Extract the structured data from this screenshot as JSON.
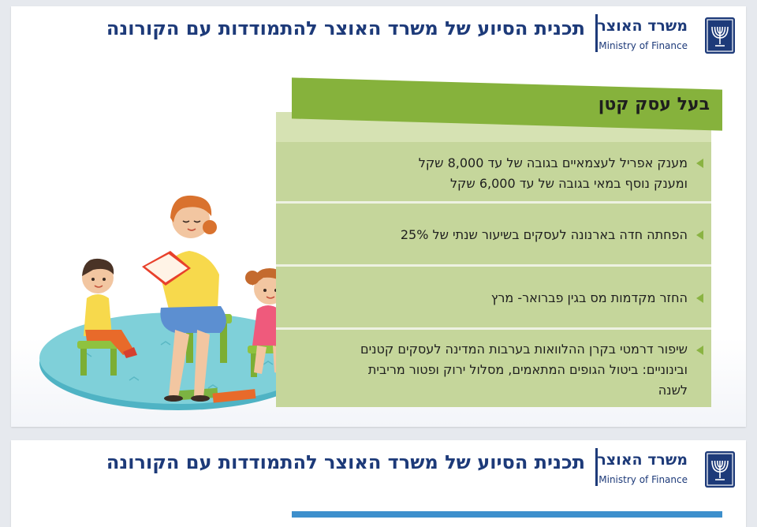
{
  "header": {
    "ministry_he": "משרד האוצר",
    "ministry_en": "Ministry of Finance",
    "title": "תכנית הסיוע של משרד האוצר להתמודדות עם הקורונה",
    "emblem_icon": "menorah-emblem-icon"
  },
  "panel": {
    "heading": "בעל עסק קטן",
    "items": [
      {
        "line1": "מענק אפריל לעצמאיים בגובה של עד 8,000 שקל",
        "line2": "ומענק נוסף במאי בגובה של עד 6,000 שקל",
        "line3": ""
      },
      {
        "line1": "הפחתה חדה בארנונה לעסקים בשיעור שנתי של 25%",
        "line2": "",
        "line3": ""
      },
      {
        "line1": "החזר מקדמות מס בגין פברואר- מרץ",
        "line2": "",
        "line3": ""
      },
      {
        "line1": "שיפור דרמטי בקרן ההלוואות בערבות המדינה לעסקים קטנים",
        "line2": "ובינוניים: ביטול הגופים המתאמים, מסלול ירוק ופטור מריבית",
        "line3": "לשנה"
      }
    ]
  },
  "colors": {
    "brand_blue": "#1d3a79",
    "header_green": "#86b23c",
    "row_green": "#c5d69b",
    "bullet_green": "#8ab342"
  }
}
